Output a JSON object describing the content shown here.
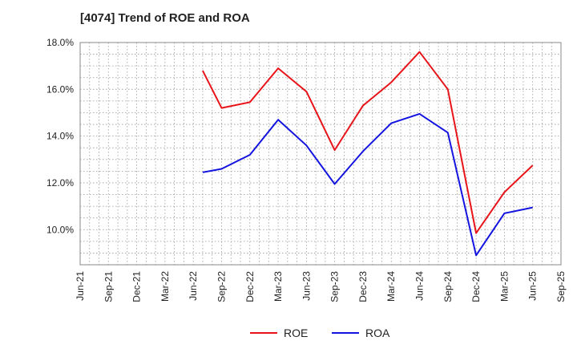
{
  "chart_data": {
    "type": "line",
    "title": "[4074]  Trend of ROE and ROA",
    "xlabel": "",
    "ylabel": "",
    "x_ticks": [
      "Jun-21",
      "Sep-21",
      "Dec-21",
      "Mar-22",
      "Jun-22",
      "Sep-22",
      "Dec-22",
      "Mar-23",
      "Jun-23",
      "Sep-23",
      "Dec-23",
      "Mar-24",
      "Jun-24",
      "Sep-24",
      "Dec-24",
      "Mar-25",
      "Jun-25",
      "Sep-25"
    ],
    "y_ticks": [
      "10.0%",
      "12.0%",
      "14.0%",
      "16.0%",
      "18.0%"
    ],
    "ylim": [
      8.5,
      18.0
    ],
    "grid": true,
    "legend_position": "bottom",
    "series": [
      {
        "name": "ROE",
        "color": "#e8141a",
        "x": [
          "Jul-22",
          "Sep-22",
          "Dec-22",
          "Mar-23",
          "Jun-23",
          "Sep-23",
          "Dec-23",
          "Mar-24",
          "Jun-24",
          "Sep-24",
          "Dec-24",
          "Mar-25",
          "Jun-25"
        ],
        "values": [
          16.8,
          15.2,
          15.45,
          16.9,
          15.9,
          13.4,
          15.3,
          16.3,
          17.6,
          16.0,
          9.85,
          11.6,
          12.75
        ]
      },
      {
        "name": "ROA",
        "color": "#1414e0",
        "x": [
          "Jul-22",
          "Sep-22",
          "Dec-22",
          "Mar-23",
          "Jun-23",
          "Sep-23",
          "Dec-23",
          "Mar-24",
          "Jun-24",
          "Sep-24",
          "Dec-24",
          "Mar-25",
          "Jun-25"
        ],
        "values": [
          12.45,
          12.6,
          13.2,
          14.7,
          13.6,
          11.95,
          13.35,
          14.55,
          14.95,
          14.15,
          8.9,
          10.7,
          10.95
        ]
      }
    ]
  }
}
